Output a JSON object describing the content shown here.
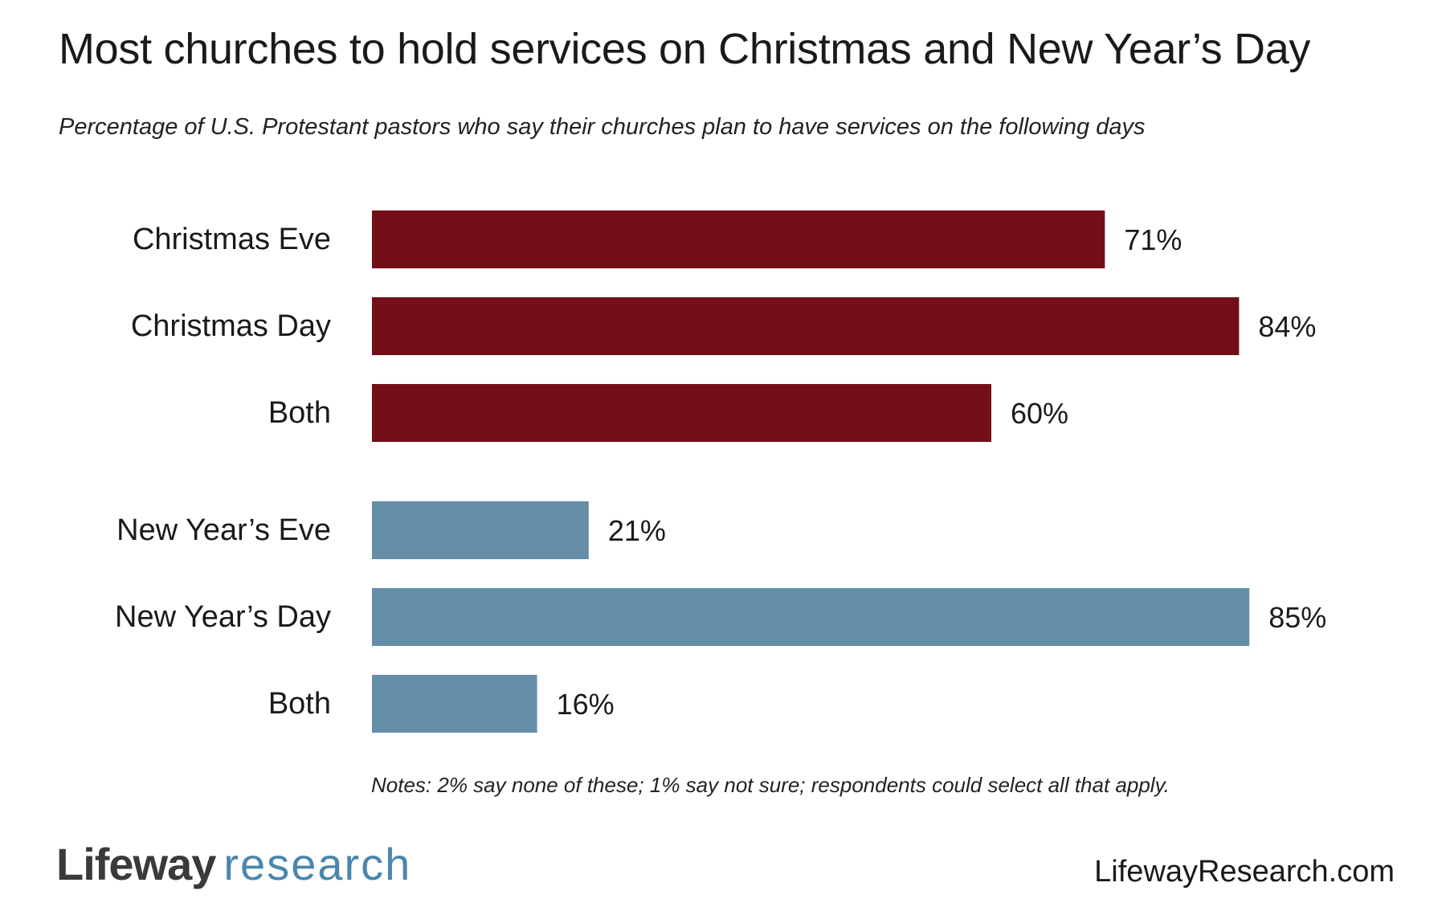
{
  "chart_data": {
    "type": "bar",
    "orientation": "horizontal",
    "title": "Most churches to hold services on Christmas and New Year’s Day",
    "subtitle": "Percentage of U.S. Protestant pastors who say their churches plan to have services on the following days",
    "xlim": [
      0,
      100
    ],
    "grid": false,
    "groups": [
      {
        "color": "#720f18",
        "categories": [
          "Christmas Eve",
          "Christmas Day",
          "Both"
        ],
        "values": [
          71,
          84,
          60
        ],
        "labels": [
          "71%",
          "84%",
          "60%"
        ]
      },
      {
        "color": "#658fa9",
        "categories": [
          "New Year’s Eve",
          "New Year’s Day",
          "Both"
        ],
        "values": [
          21,
          85,
          16
        ],
        "labels": [
          "21%",
          "85%",
          "16%"
        ]
      }
    ]
  },
  "notes": "Notes: 2% say none of these; 1% say not sure; respondents could select all that apply.",
  "footer": {
    "logo_word": "Lifeway",
    "logo_sub": "research",
    "website": "LifewayResearch.com"
  }
}
